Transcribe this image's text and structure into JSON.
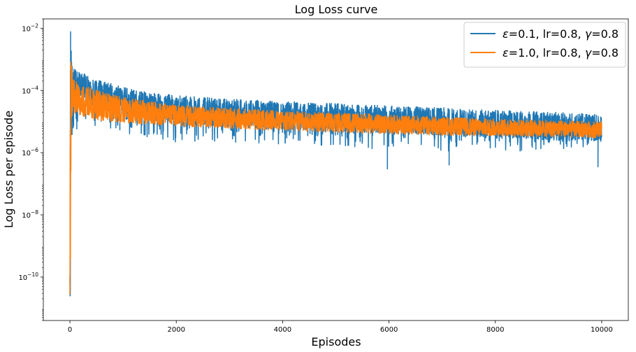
{
  "chart_data": {
    "type": "line",
    "title": "Log Loss curve",
    "xlabel": "Episodes",
    "ylabel": "Log Loss per episode",
    "yscale": "log",
    "xlim": [
      -500,
      10500
    ],
    "ylim": [
      4e-12,
      0.02
    ],
    "grid": false,
    "legend": "top-right",
    "xticks": [
      {
        "value": 0,
        "label": "0"
      },
      {
        "value": 2000,
        "label": "2000"
      },
      {
        "value": 4000,
        "label": "4000"
      },
      {
        "value": 6000,
        "label": "6000"
      },
      {
        "value": 8000,
        "label": "8000"
      },
      {
        "value": 10000,
        "label": "10000"
      }
    ],
    "yticks": [
      {
        "value": 1e-10,
        "base": "10",
        "exp": "−10"
      },
      {
        "value": 1e-08,
        "base": "10",
        "exp": "−8"
      },
      {
        "value": 1e-06,
        "base": "10",
        "exp": "−6"
      },
      {
        "value": 0.0001,
        "base": "10",
        "exp": "−4"
      },
      {
        "value": 0.01,
        "base": "10",
        "exp": "−2"
      }
    ],
    "series": [
      {
        "name": "ε=0.1, lr=0.8, γ=0.8",
        "legend_parts": [
          "ε",
          "=0.1, lr=0.8, ",
          "γ",
          "=0.8"
        ],
        "color": "#1f77b4",
        "x": [
          0,
          10,
          20,
          30,
          40,
          50,
          100,
          200,
          400,
          700,
          1000,
          1500,
          2000,
          2500,
          3000,
          3500,
          4000,
          4500,
          5000,
          5500,
          6000,
          6500,
          7000,
          7500,
          8000,
          8500,
          9000,
          9500,
          10000
        ],
        "upper": [
          3e-10,
          0.011,
          0.003,
          0.0015,
          0.0008,
          0.0006,
          0.0005,
          0.0004,
          0.00025,
          0.00018,
          0.00013,
          8.5e-05,
          7e-05,
          6e-05,
          5.5e-05,
          4.8e-05,
          4.5e-05,
          4.2e-05,
          3.8e-05,
          3.5e-05,
          3.3e-05,
          3e-05,
          2.8e-05,
          2.5e-05,
          2.3e-05,
          2.2e-05,
          2e-05,
          1.9e-05,
          1.8e-05
        ],
        "lower": [
          2.5e-11,
          2e-11,
          1e-07,
          1e-06,
          3e-06,
          6e-06,
          3e-06,
          5e-06,
          6e-06,
          5e-06,
          4e-06,
          3e-06,
          2e-06,
          2.5e-06,
          2e-06,
          1.5e-06,
          2e-06,
          1.8e-06,
          1.5e-06,
          1.2e-06,
          1.5e-06,
          1.2e-06,
          1e-06,
          1.5e-06,
          1.2e-06,
          1e-06,
          1.5e-06,
          1.2e-06,
          1.5e-06
        ],
        "min_spikes": [
          {
            "x": 6,
            "y": 2.5e-11
          },
          {
            "x": 5970,
            "y": 3e-07
          },
          {
            "x": 7130,
            "y": 4e-07
          },
          {
            "x": 9930,
            "y": 3.5e-07
          }
        ]
      },
      {
        "name": "ε=1.0, lr=0.8, γ=0.8",
        "legend_parts": [
          "ε",
          "=1.0, lr=0.8, ",
          "γ",
          "=0.8"
        ],
        "color": "#ff7f0e",
        "x": [
          0,
          10,
          20,
          30,
          40,
          50,
          100,
          200,
          400,
          700,
          1000,
          1500,
          2000,
          2500,
          3000,
          3500,
          4000,
          4500,
          5000,
          5500,
          6000,
          6500,
          7000,
          7500,
          8000,
          8500,
          9000,
          9500,
          10000
        ],
        "upper": [
          3e-09,
          0.004,
          0.0025,
          0.001,
          0.0006,
          0.0004,
          0.00025,
          0.00018,
          0.00012,
          8e-05,
          6e-05,
          4.5e-05,
          3.5e-05,
          3e-05,
          2.8e-05,
          2.5e-05,
          2.2e-05,
          2e-05,
          1.9e-05,
          1.8e-05,
          1.6e-05,
          1.5e-05,
          1.4e-05,
          1.3e-05,
          1.2e-05,
          1.15e-05,
          1.1e-05,
          1.05e-05,
          1e-05
        ],
        "lower": [
          1.5e-11,
          1.5e-11,
          2e-06,
          1e-05,
          1.5e-05,
          2e-05,
          1.8e-05,
          1.6e-05,
          1.2e-05,
          1e-05,
          9e-06,
          8e-06,
          7e-06,
          6.5e-06,
          6e-06,
          5.5e-06,
          5e-06,
          4.8e-06,
          4.5e-06,
          4.2e-06,
          4e-06,
          3.8e-06,
          3.6e-06,
          3.5e-06,
          3.4e-06,
          3.3e-06,
          3.2e-06,
          3.1e-06,
          3e-06
        ]
      }
    ]
  }
}
